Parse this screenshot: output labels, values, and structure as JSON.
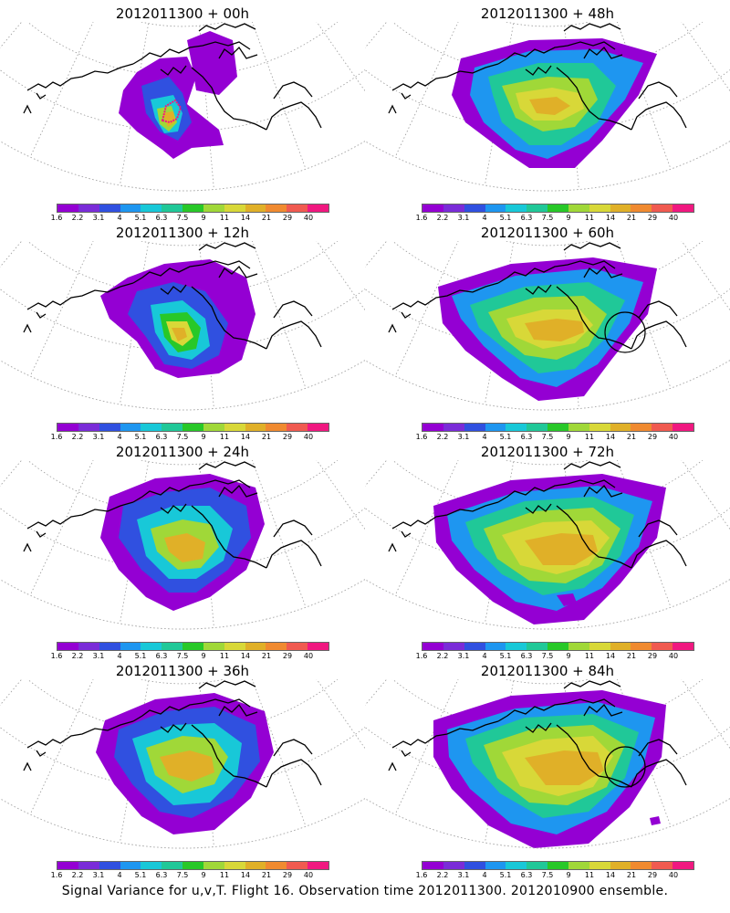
{
  "panels": [
    {
      "title": "2012011300 + 00h"
    },
    {
      "title": "2012011300 + 48h"
    },
    {
      "title": "2012011300 + 12h"
    },
    {
      "title": "2012011300 + 60h"
    },
    {
      "title": "2012011300 + 24h"
    },
    {
      "title": "2012011300 + 72h"
    },
    {
      "title": "2012011300 + 36h"
    },
    {
      "title": "2012011300 + 84h"
    }
  ],
  "colorbar": {
    "colors": [
      "#9400d3",
      "#7a2cd8",
      "#3050e0",
      "#1e96f0",
      "#18c8d8",
      "#20c898",
      "#28c828",
      "#a0d838",
      "#d8d838",
      "#e0b028",
      "#f08a30",
      "#f05a50",
      "#f01880"
    ],
    "labels": [
      "1.6",
      "2.2",
      "3.1",
      "4",
      "5.1",
      "6.3",
      "7.5",
      "9",
      "11",
      "14",
      "21",
      "29",
      "40"
    ]
  },
  "footer": "Signal Variance for u,v,T. Flight 16. Observation time 2012011300. 2012010900 ensemble."
}
